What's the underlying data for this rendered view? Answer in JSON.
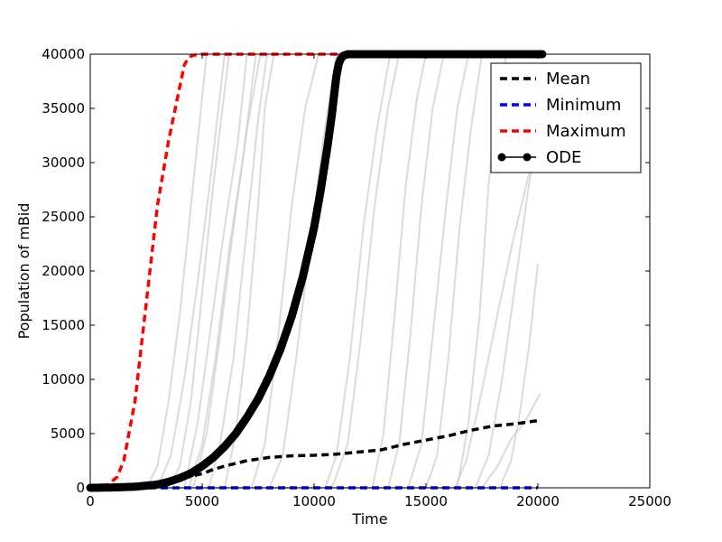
{
  "chart_data": {
    "type": "line",
    "title": "",
    "xlabel": "Time",
    "ylabel": "Population of mBid",
    "xlim": [
      0,
      25000
    ],
    "ylim": [
      0,
      40000
    ],
    "x_ticks": [
      0,
      5000,
      10000,
      15000,
      20000,
      25000
    ],
    "y_ticks": [
      0,
      5000,
      10000,
      15000,
      20000,
      25000,
      30000,
      35000,
      40000
    ],
    "grid": false,
    "legend_position": "top-right",
    "series": [
      {
        "name": "Mean",
        "color": "#000000",
        "style": "dashed",
        "x": [
          0,
          2000,
          4000,
          5000,
          5500,
          6000,
          7000,
          8000,
          9000,
          10000,
          11000,
          12000,
          13000,
          14000,
          15000,
          16000,
          17000,
          18000,
          19000,
          20000
        ],
        "y": [
          0,
          200,
          800,
          1300,
          1700,
          2000,
          2500,
          2800,
          2950,
          3000,
          3100,
          3300,
          3500,
          4000,
          4400,
          4800,
          5300,
          5700,
          5900,
          6200
        ]
      },
      {
        "name": "Minimum",
        "color": "#0000ff",
        "style": "dashed",
        "x": [
          0,
          20000
        ],
        "y": [
          0,
          0
        ]
      },
      {
        "name": "Maximum",
        "color": "#ff0000",
        "style": "dashed",
        "x": [
          0,
          800,
          1200,
          1500,
          2000,
          2500,
          3000,
          3500,
          4000,
          4200,
          4400,
          4600,
          5000,
          10000,
          15000,
          20000
        ],
        "y": [
          0,
          300,
          1000,
          2500,
          8000,
          17000,
          26000,
          32000,
          37000,
          39000,
          39700,
          39900,
          40000,
          40000,
          40000,
          40000
        ]
      },
      {
        "name": "ODE",
        "color": "#000000",
        "style": "solid-dots",
        "x": [
          0,
          1000,
          2000,
          3000,
          3500,
          4000,
          4500,
          5000,
          5500,
          6000,
          6500,
          7000,
          7500,
          8000,
          8500,
          9000,
          9500,
          10000,
          10300,
          10600,
          10800,
          10900,
          11000,
          11100,
          11200,
          11300,
          11500,
          12000,
          14000,
          16000,
          18000,
          20200
        ],
        "y": [
          0,
          30,
          100,
          300,
          550,
          900,
          1350,
          2000,
          2800,
          3800,
          5000,
          6500,
          8200,
          10300,
          12800,
          15800,
          19500,
          24000,
          27500,
          31500,
          34500,
          36300,
          38000,
          39100,
          39600,
          39850,
          40000,
          40000,
          40000,
          40000,
          40000,
          40000
        ]
      }
    ],
    "background_series": {
      "color": "#cccccc",
      "style": "solid",
      "curves": [
        {
          "x": [
            0,
            2500,
            3000,
            3500,
            4000,
            4400,
            4800,
            5200
          ],
          "y": [
            0,
            0,
            2000,
            8000,
            16000,
            24000,
            32000,
            40000
          ]
        },
        {
          "x": [
            0,
            3000,
            3600,
            4200,
            4800,
            5400,
            6000
          ],
          "y": [
            0,
            0,
            3000,
            10000,
            19000,
            29000,
            40000
          ]
        },
        {
          "x": [
            0,
            3500,
            4000,
            4500,
            5000,
            5500,
            6200
          ],
          "y": [
            0,
            0,
            2000,
            8000,
            18000,
            28000,
            40000
          ]
        },
        {
          "x": [
            0,
            4400,
            5000,
            5600,
            6200,
            6800,
            7400
          ],
          "y": [
            0,
            0,
            4000,
            12000,
            22000,
            30000,
            40000
          ]
        },
        {
          "x": [
            0,
            4200,
            4800,
            5400,
            6000,
            6600,
            7000
          ],
          "y": [
            0,
            0,
            6000,
            15000,
            24000,
            32000,
            40000
          ]
        },
        {
          "x": [
            0,
            4600,
            5200,
            5800,
            6400,
            7000,
            7600
          ],
          "y": [
            0,
            0,
            5000,
            14000,
            24000,
            33000,
            40000
          ]
        },
        {
          "x": [
            0,
            5300,
            5800,
            6400,
            7000,
            7500,
            7900
          ],
          "y": [
            0,
            0,
            4000,
            12000,
            24000,
            34000,
            40000
          ]
        },
        {
          "x": [
            0,
            6000,
            6500,
            7000,
            7500,
            7800,
            8200
          ],
          "y": [
            0,
            0,
            5000,
            14000,
            26000,
            35000,
            40000
          ]
        },
        {
          "x": [
            0,
            7200,
            7800,
            8400,
            9000,
            9600,
            10200
          ],
          "y": [
            0,
            0,
            4000,
            14000,
            26000,
            35000,
            40000
          ]
        },
        {
          "x": [
            0,
            8000,
            8600,
            9200,
            9800,
            10400,
            11000
          ],
          "y": [
            0,
            0,
            3000,
            12000,
            22000,
            32000,
            40000
          ]
        },
        {
          "x": [
            0,
            10500,
            11000,
            11600,
            12200,
            12800,
            13400
          ],
          "y": [
            0,
            0,
            3000,
            12000,
            24000,
            33000,
            40000
          ]
        },
        {
          "x": [
            0,
            10800,
            11500,
            12100,
            12700,
            13300,
            13800
          ],
          "y": [
            0,
            0,
            4000,
            14000,
            26000,
            35000,
            40000
          ]
        },
        {
          "x": [
            0,
            12600,
            13100,
            13600,
            14100,
            14600,
            15000
          ],
          "y": [
            0,
            0,
            5000,
            16000,
            28000,
            36000,
            40000
          ]
        },
        {
          "x": [
            0,
            13300,
            13800,
            14300,
            14800,
            15300,
            15800
          ],
          "y": [
            0,
            0,
            4000,
            14000,
            26000,
            35000,
            40000
          ]
        },
        {
          "x": [
            0,
            14200,
            14800,
            15300,
            15900,
            16400,
            16900
          ],
          "y": [
            0,
            0,
            4000,
            14000,
            26000,
            35000,
            40000
          ]
        },
        {
          "x": [
            0,
            15000,
            15500,
            16000,
            16500,
            17000,
            17500
          ],
          "y": [
            0,
            0,
            3000,
            12000,
            24000,
            33000,
            40000
          ]
        },
        {
          "x": [
            0,
            16400,
            16900,
            17400,
            17800,
            18200,
            18600
          ],
          "y": [
            0,
            0,
            6000,
            16000,
            28000,
            36000,
            40000
          ]
        },
        {
          "x": [
            0,
            16300,
            16800,
            17400,
            18000,
            18800,
            19600
          ],
          "y": [
            0,
            0,
            2500,
            8000,
            14000,
            22000,
            29000
          ]
        },
        {
          "x": [
            0,
            17200,
            17800,
            18400,
            19000,
            19600,
            20000
          ],
          "y": [
            0,
            0,
            3000,
            10000,
            19000,
            28000,
            33000
          ]
        },
        {
          "x": [
            0,
            18300,
            18800,
            19200,
            19600,
            20000
          ],
          "y": [
            0,
            0,
            2500,
            7000,
            13000,
            20700
          ]
        },
        {
          "x": [
            0,
            17500,
            18200,
            18800,
            19400,
            20100
          ],
          "y": [
            0,
            0,
            2000,
            4500,
            6000,
            8700
          ]
        }
      ]
    }
  }
}
